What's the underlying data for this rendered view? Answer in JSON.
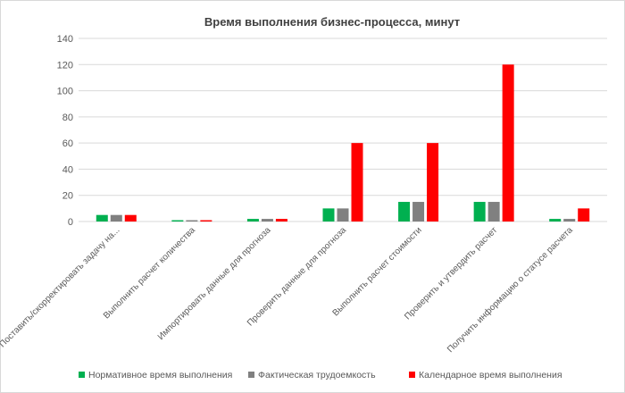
{
  "chart_data": {
    "type": "bar",
    "title": "Время выполнения бизнес-процесса, минут",
    "xlabel": "",
    "ylabel": "",
    "ylim": [
      0,
      140
    ],
    "yticks": [
      0,
      20,
      40,
      60,
      80,
      100,
      120,
      140
    ],
    "grid": true,
    "legend_position": "bottom",
    "categories": [
      "Поставить/скорректировать задачу на...",
      "Выполнить расчет количества",
      "Импортировать данные для прогноза",
      "Проверить данные для прогноза",
      "Выполнить расчет стоимости",
      "Проверить и утвердить расчет",
      "Получить информацию о статусе расчета"
    ],
    "series": [
      {
        "name": "Нормативное время выполнения",
        "color": "#00b050",
        "values": [
          5,
          1,
          2,
          10,
          15,
          15,
          2
        ]
      },
      {
        "name": "Фактическая трудоемкость",
        "color": "#808080",
        "values": [
          5,
          1,
          2,
          10,
          15,
          15,
          2
        ]
      },
      {
        "name": "Календарное время выполнения",
        "color": "#ff0000",
        "values": [
          5,
          1,
          2,
          60,
          60,
          120,
          10
        ]
      }
    ]
  }
}
